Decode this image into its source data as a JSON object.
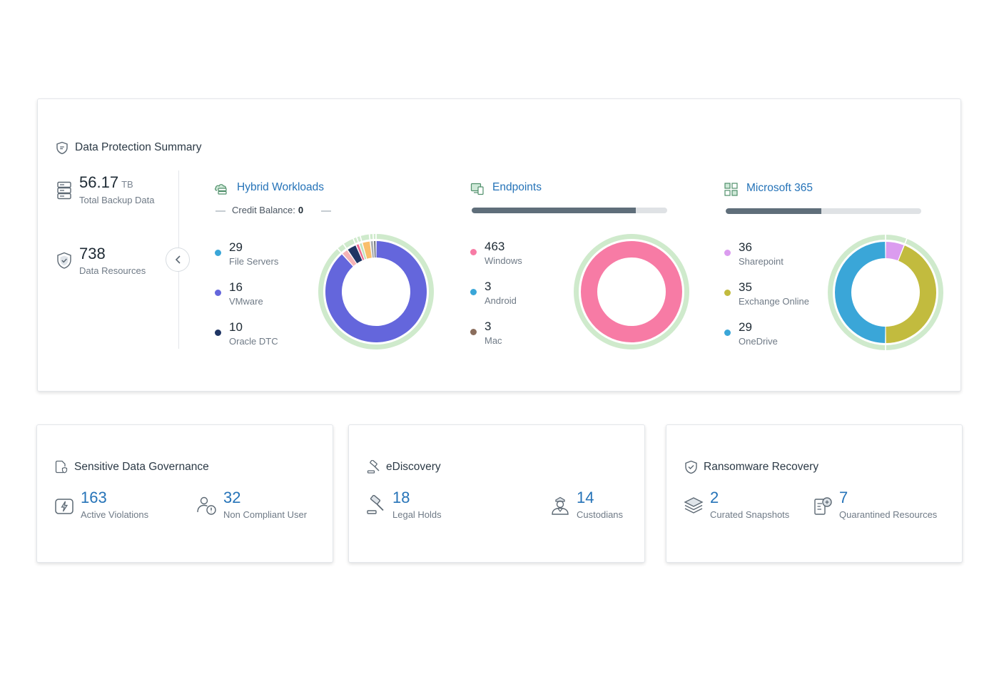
{
  "summary": {
    "title": "Data Protection Summary",
    "total_backup": {
      "value": "56.17",
      "unit": "TB",
      "label": "Total Backup Data"
    },
    "data_resources": {
      "value": "738",
      "label": "Data Resources"
    }
  },
  "hybrid": {
    "title": "Hybrid Workloads",
    "credit_label": "Credit Balance:",
    "credit_value": "0",
    "items": [
      {
        "value": "29",
        "label": "File Servers",
        "color": "#3aa6d8"
      },
      {
        "value": "16",
        "label": "VMware",
        "color": "#6466dc"
      },
      {
        "value": "10",
        "label": "Oracle DTC",
        "color": "#1f3564"
      }
    ]
  },
  "endpoints": {
    "title": "Endpoints",
    "progress": 0.84,
    "items": [
      {
        "value": "463",
        "label": "Windows",
        "color": "#f77ba5"
      },
      {
        "value": "3",
        "label": "Android",
        "color": "#3aa6d8"
      },
      {
        "value": "3",
        "label": "Mac",
        "color": "#8a6d5c"
      }
    ]
  },
  "m365": {
    "title": "Microsoft 365",
    "progress": 0.49,
    "items": [
      {
        "value": "36",
        "label": "Sharepoint",
        "color": "#db9cef"
      },
      {
        "value": "35",
        "label": "Exchange Online",
        "color": "#c2bb3e"
      },
      {
        "value": "29",
        "label": "OneDrive",
        "color": "#3aa6d8"
      }
    ]
  },
  "governance": {
    "title": "Sensitive Data Governance",
    "stat1": {
      "value": "163",
      "label": "Active Violations"
    },
    "stat2": {
      "value": "32",
      "label": "Non Compliant User"
    }
  },
  "ediscovery": {
    "title": "eDiscovery",
    "stat1": {
      "value": "18",
      "label": "Legal Holds"
    },
    "stat2": {
      "value": "14",
      "label": "Custodians"
    }
  },
  "ransomware": {
    "title": "Ransomware Recovery",
    "stat1": {
      "value": "2",
      "label": "Curated Snapshots"
    },
    "stat2": {
      "value": "7",
      "label": "Quarantined Resources"
    }
  },
  "chart_data": [
    {
      "type": "pie",
      "categories": [
        "VMware",
        "Pink",
        "Oracle DTC",
        "Rose",
        "Light green",
        "Orange",
        "Gray",
        "Dark gray"
      ],
      "values": [
        86,
        2,
        3,
        1,
        1,
        2.5,
        1,
        0.8
      ],
      "colors": [
        "#6466dc",
        "#f5b3b7",
        "#1f3564",
        "#ef6b90",
        "#bfe3be",
        "#f9be6b",
        "#a8adb2",
        "#6a7076"
      ]
    },
    {
      "type": "pie",
      "categories": [
        "Windows"
      ],
      "values": [
        463
      ],
      "colors": [
        "#f77ba5"
      ]
    },
    {
      "type": "pie",
      "categories": [
        "Sharepoint",
        "Exchange Online",
        "OneDrive"
      ],
      "values": [
        6,
        44,
        50
      ],
      "colors": [
        "#db9cef",
        "#c2bb3e",
        "#3aa6d8"
      ]
    }
  ]
}
